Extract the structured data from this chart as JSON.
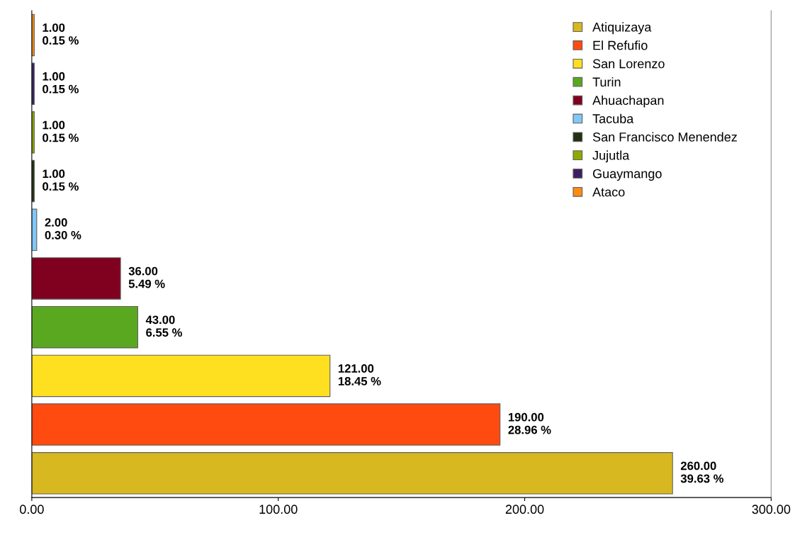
{
  "chart_data": {
    "type": "bar",
    "orientation": "horizontal",
    "categories": [
      null,
      null,
      null,
      null,
      null,
      null,
      null,
      null,
      null,
      null
    ],
    "series": [
      {
        "name": "Atiquizaya",
        "color": "#d8b820",
        "values": [
          null,
          null,
          null,
          null,
          null,
          null,
          null,
          null,
          null,
          260
        ],
        "value_labels": [
          null,
          null,
          null,
          null,
          null,
          null,
          null,
          null,
          null,
          "260.00\n39.63 %"
        ]
      },
      {
        "name": "El Refufio",
        "color": "#ff4a10",
        "values": [
          null,
          null,
          null,
          null,
          null,
          null,
          null,
          null,
          190,
          null
        ],
        "value_labels": [
          null,
          null,
          null,
          null,
          null,
          null,
          null,
          null,
          "190.00\n28.96 %",
          null
        ]
      },
      {
        "name": "San Lorenzo",
        "color": "#ffe020",
        "values": [
          null,
          null,
          null,
          null,
          null,
          null,
          null,
          121,
          null,
          null
        ],
        "value_labels": [
          null,
          null,
          null,
          null,
          null,
          null,
          null,
          "121.00\n18.45 %",
          null,
          null
        ]
      },
      {
        "name": "Turin",
        "color": "#5aa820",
        "values": [
          null,
          null,
          null,
          null,
          null,
          null,
          43,
          null,
          null,
          null
        ],
        "value_labels": [
          null,
          null,
          null,
          null,
          null,
          null,
          "43.00\n6.55 %",
          null,
          null,
          null
        ]
      },
      {
        "name": "Ahuachapan",
        "color": "#800020",
        "values": [
          null,
          null,
          null,
          null,
          null,
          36,
          null,
          null,
          null,
          null
        ],
        "value_labels": [
          null,
          null,
          null,
          null,
          null,
          "36.00\n5.49 %",
          null,
          null,
          null,
          null
        ]
      },
      {
        "name": "Tacuba",
        "color": "#80c8f8",
        "values": [
          null,
          null,
          null,
          null,
          2,
          null,
          null,
          null,
          null,
          null
        ],
        "value_labels": [
          null,
          null,
          null,
          null,
          "2.00\n0.30 %",
          null,
          null,
          null,
          null,
          null
        ]
      },
      {
        "name": "San Francisco Menendez",
        "color": "#203010",
        "values": [
          null,
          null,
          null,
          1,
          null,
          null,
          null,
          null,
          null,
          null
        ],
        "value_labels": [
          null,
          null,
          null,
          "1.00\n0.15 %",
          null,
          null,
          null,
          null,
          null,
          null
        ]
      },
      {
        "name": "Jujutla",
        "color": "#90a800",
        "values": [
          null,
          null,
          1,
          null,
          null,
          null,
          null,
          null,
          null,
          null
        ],
        "value_labels": [
          null,
          null,
          "1.00\n0.15 %",
          null,
          null,
          null,
          null,
          null,
          null,
          null
        ]
      },
      {
        "name": "Guaymango",
        "color": "#3a2060",
        "values": [
          null,
          1,
          null,
          null,
          null,
          null,
          null,
          null,
          null,
          null
        ],
        "value_labels": [
          null,
          "1.00\n0.15 %",
          null,
          null,
          null,
          null,
          null,
          null,
          null,
          null
        ]
      },
      {
        "name": "Ataco",
        "color": "#ff8c10",
        "values": [
          1,
          null,
          null,
          null,
          null,
          null,
          null,
          null,
          null,
          null
        ],
        "value_labels": [
          "1.00\n0.15 %",
          null,
          null,
          null,
          null,
          null,
          null,
          null,
          null,
          null
        ]
      }
    ],
    "xlim": [
      0,
      300
    ],
    "xticks": [
      {
        "value": 0,
        "label": "0.00"
      },
      {
        "value": 100,
        "label": "100.00"
      },
      {
        "value": 200,
        "label": "200.00"
      },
      {
        "value": 300,
        "label": "300.00"
      }
    ],
    "grid": false,
    "legend": "top right"
  }
}
